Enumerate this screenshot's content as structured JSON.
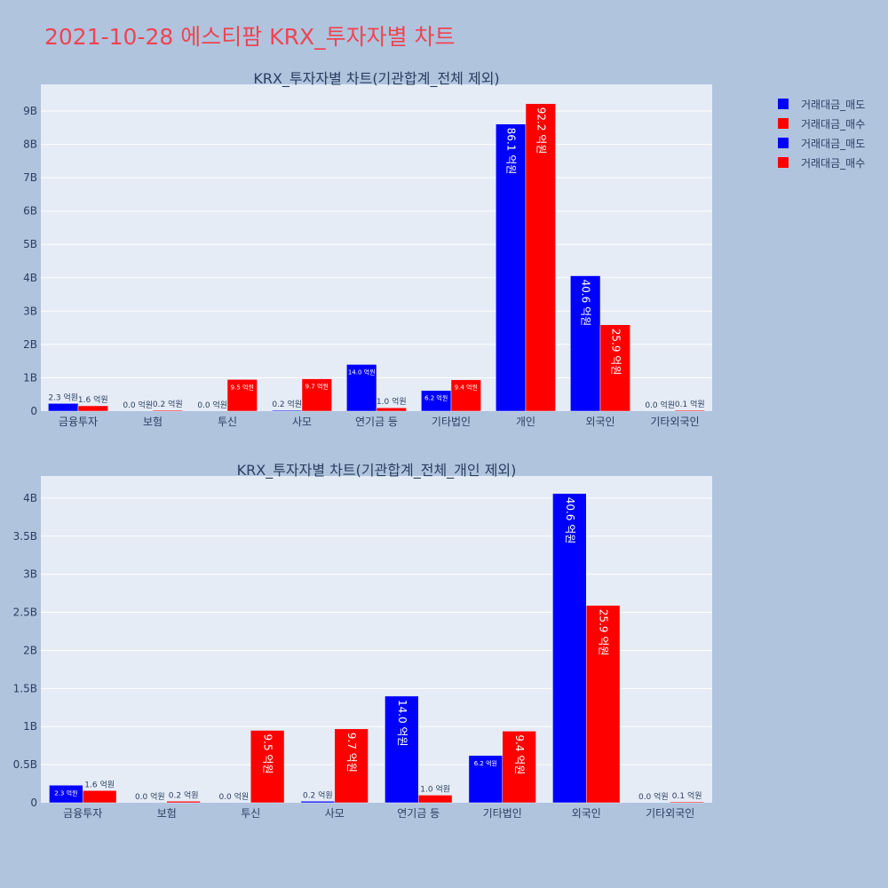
{
  "title": "2021-10-28 에스티팜 KRX_투자자별 차트",
  "legend": [
    {
      "label": "거래대금_매도",
      "color": "#0000ff"
    },
    {
      "label": "거래대금_매수",
      "color": "#ff0000"
    },
    {
      "label": "거래대금_매도",
      "color": "#0000ff"
    },
    {
      "label": "거래대금_매수",
      "color": "#ff0000"
    }
  ],
  "chart_data": [
    {
      "type": "bar",
      "title": "KRX_투자자별 차트(기관합계_전체 제외)",
      "categories": [
        "금융투자",
        "보험",
        "투신",
        "사모",
        "연기금 등",
        "기타법인",
        "개인",
        "외국인",
        "기타외국인"
      ],
      "series": [
        {
          "name": "거래대금_매도",
          "color": "#0000ff",
          "values": [
            230000000,
            0,
            0,
            20000000,
            1400000000,
            620000000,
            8610000000,
            4060000000,
            0
          ],
          "labels": [
            "2.3 억원",
            "0.0 억원",
            "0.0 억원",
            "0.2 억원",
            "14.0 억원",
            "6.2 억원",
            "86.1 억원",
            "40.6 억원",
            "0.0 억원"
          ]
        },
        {
          "name": "거래대금_매수",
          "color": "#ff0000",
          "values": [
            160000000,
            20000000,
            950000000,
            970000000,
            100000000,
            940000000,
            9220000000,
            2590000000,
            10000000
          ],
          "labels": [
            "1.6 억원",
            "0.2 억원",
            "9.5 억원",
            "9.7 억원",
            "1.0 억원",
            "9.4 억원",
            "92.2 억원",
            "25.9 억원",
            "0.1 억원"
          ]
        }
      ],
      "yticks": [
        0,
        1000000000,
        2000000000,
        3000000000,
        4000000000,
        5000000000,
        6000000000,
        7000000000,
        8000000000,
        9000000000
      ],
      "ytick_labels": [
        "0",
        "1B",
        "2B",
        "3B",
        "4B",
        "5B",
        "6B",
        "7B",
        "8B",
        "9B"
      ],
      "ylim": [
        0,
        9800000000
      ]
    },
    {
      "type": "bar",
      "title": "KRX_투자자별 차트(기관합계_전체_개인 제외)",
      "categories": [
        "금융투자",
        "보험",
        "투신",
        "사모",
        "연기금 등",
        "기타법인",
        "외국인",
        "기타외국인"
      ],
      "series": [
        {
          "name": "거래대금_매도",
          "color": "#0000ff",
          "values": [
            230000000,
            0,
            0,
            20000000,
            1400000000,
            620000000,
            4060000000,
            0
          ],
          "labels": [
            "2.3 억원",
            "0.0 억원",
            "0.0 억원",
            "0.2 억원",
            "14.0 억원",
            "6.2 억원",
            "40.6 억원",
            "0.0 억원"
          ]
        },
        {
          "name": "거래대금_매수",
          "color": "#ff0000",
          "values": [
            160000000,
            20000000,
            950000000,
            970000000,
            100000000,
            940000000,
            2590000000,
            10000000
          ],
          "labels": [
            "1.6 억원",
            "0.2 억원",
            "9.5 억원",
            "9.7 억원",
            "1.0 억원",
            "9.4 억원",
            "25.9 억원",
            "0.1 억원"
          ]
        }
      ],
      "yticks": [
        0,
        500000000,
        1000000000,
        1500000000,
        2000000000,
        2500000000,
        3000000000,
        3500000000,
        4000000000
      ],
      "ytick_labels": [
        "0",
        "0.5B",
        "1B",
        "1.5B",
        "2B",
        "2.5B",
        "3B",
        "3.5B",
        "4B"
      ],
      "ylim": [
        0,
        4290000000
      ]
    }
  ]
}
